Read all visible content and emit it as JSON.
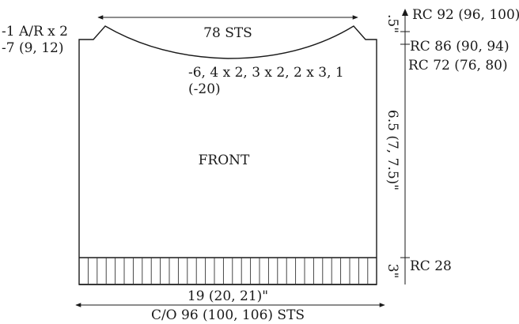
{
  "diagram": {
    "piece_label": "FRONT",
    "neck_width_label": "78 STS",
    "armhole_decrease_label_1": "-1 A/R x 2",
    "armhole_decrease_label_2": "-7 (9, 12)",
    "neck_shaping_label_1": "-6, 4 x 2, 3 x 2, 2 x 3, 1",
    "neck_shaping_label_2": "(-20)",
    "row_count_top": "RC 92 (96, 100)",
    "row_count_shoulder": "RC 86 (90, 94)",
    "row_count_armhole": "RC 72 (76, 80)",
    "row_count_rib": "RC 28",
    "shoulder_height_label": ".5\"",
    "body_height_label": "6.5 (7, 7.5)\"",
    "rib_height_label": "3\"",
    "width_label": "19 (20, 21)\"",
    "cast_on_label": "C/O 96 (100, 106) STS"
  }
}
